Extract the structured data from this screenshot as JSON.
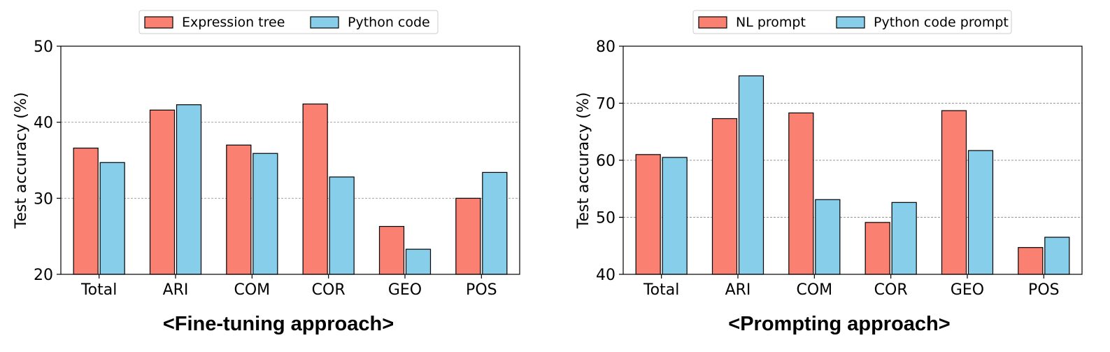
{
  "chart_data": [
    {
      "type": "bar",
      "title": "<Fine-tuning approach>",
      "xlabel": "",
      "ylabel": "Test accuracy (%)",
      "categories": [
        "Total",
        "ARI",
        "COM",
        "COR",
        "GEO",
        "POS"
      ],
      "yticks": [
        "20",
        "30",
        "40",
        "50"
      ],
      "ylim": [
        20,
        50
      ],
      "grid": "horizontal-dashed",
      "legend_position": "top-center",
      "series": [
        {
          "name": "Expression tree",
          "color": "#fa8072",
          "values": [
            36.6,
            41.6,
            37.0,
            42.4,
            26.3,
            30.0
          ]
        },
        {
          "name": "Python code",
          "color": "#87ceeb",
          "values": [
            34.7,
            42.3,
            35.9,
            32.8,
            23.3,
            33.4
          ]
        }
      ]
    },
    {
      "type": "bar",
      "title": "<Prompting approach>",
      "xlabel": "",
      "ylabel": "Test accuracy (%)",
      "categories": [
        "Total",
        "ARI",
        "COM",
        "COR",
        "GEO",
        "POS"
      ],
      "yticks": [
        "40",
        "50",
        "60",
        "70",
        "80"
      ],
      "ylim": [
        40,
        80
      ],
      "grid": "horizontal-dashed",
      "legend_position": "top-center",
      "series": [
        {
          "name": "NL prompt",
          "color": "#fa8072",
          "values": [
            61.0,
            67.3,
            68.3,
            49.1,
            68.7,
            44.7
          ]
        },
        {
          "name": "Python code prompt",
          "color": "#87ceeb",
          "values": [
            60.5,
            74.8,
            53.1,
            52.6,
            61.7,
            46.5
          ]
        }
      ]
    }
  ]
}
